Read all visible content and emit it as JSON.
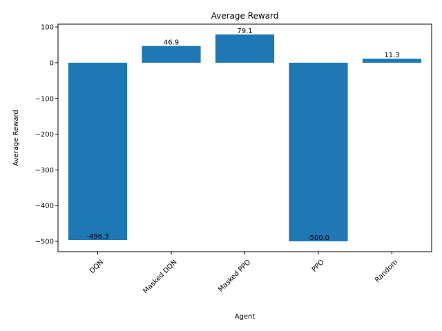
{
  "chart_data": {
    "type": "bar",
    "title": "Average Reward",
    "xlabel": "Agent",
    "ylabel": "Average Reward",
    "categories": [
      "DQN",
      "Masked DQN",
      "Masked PPO",
      "PPO",
      "Random"
    ],
    "values": [
      -496.3,
      46.9,
      79.1,
      -500.0,
      11.3
    ],
    "value_labels": [
      "-496.3",
      "46.9",
      "79.1",
      "-500.0",
      "11.3"
    ],
    "ylim": [
      -529,
      108
    ],
    "yticks": [
      -500,
      -400,
      -300,
      -200,
      -100,
      0,
      100
    ],
    "ytick_labels": [
      "−500",
      "−400",
      "−300",
      "−200",
      "−100",
      "0",
      "100"
    ],
    "bar_color": "#1f77b4",
    "grid": false,
    "legend": "none",
    "xtick_rotation_deg": 45
  }
}
